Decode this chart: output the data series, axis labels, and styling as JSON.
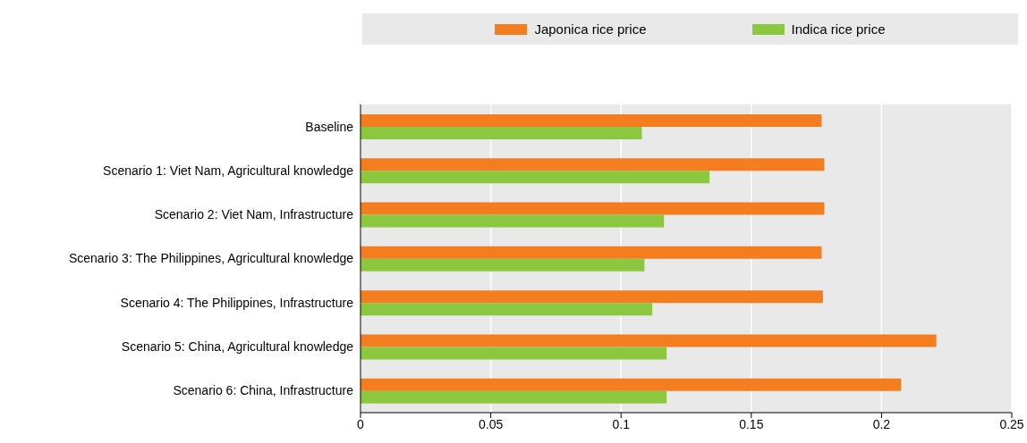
{
  "chart_data": {
    "type": "bar",
    "orientation": "horizontal",
    "categories": [
      "Baseline",
      "Scenario 1: Viet Nam, Agricultural knowledge",
      "Scenario 2: Viet Nam, Infrastructure",
      "Scenario 3: The Philippines, Agricultural knowledge",
      "Scenario 4: The Philippines, Infrastructure",
      "Scenario 5: China, Agricultural knowledge",
      "Scenario 6: China, Infrastructure"
    ],
    "series": [
      {
        "name": "Japonica rice price",
        "color": "#f47d20",
        "values": [
          0.177,
          0.178,
          0.178,
          0.177,
          0.1775,
          0.221,
          0.2075
        ]
      },
      {
        "name": "Indica rice price",
        "color": "#8cc83f",
        "values": [
          0.108,
          0.134,
          0.1165,
          0.109,
          0.112,
          0.1175,
          0.1175
        ]
      }
    ],
    "xlim": [
      0,
      0.25
    ],
    "xticks": [
      0,
      0.05,
      0.1,
      0.15,
      0.2,
      0.25
    ],
    "grid": "x",
    "legend": "top"
  }
}
